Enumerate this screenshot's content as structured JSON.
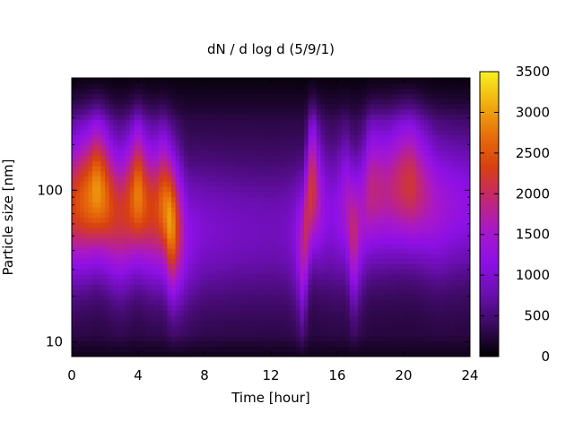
{
  "chart_data": {
    "type": "heatmap",
    "title": "dN / d log d (5/9/1)",
    "xlabel": "Time [hour]",
    "ylabel": "Particle size [nm]",
    "xlim": [
      0,
      24
    ],
    "ylim": [
      8,
      550
    ],
    "yscale": "log",
    "x_ticks": [
      0,
      4,
      8,
      12,
      16,
      20,
      24
    ],
    "x_tick_labels": [
      "0",
      "4",
      "8",
      "12",
      "16",
      "20",
      "24"
    ],
    "y_ticks": [
      10,
      100
    ],
    "y_tick_labels": [
      "10",
      "100"
    ],
    "colorbar": {
      "range": [
        0,
        3500
      ],
      "ticks": [
        0,
        500,
        1000,
        1500,
        2000,
        2500,
        3000,
        3500
      ],
      "tick_labels": [
        "0",
        "500",
        "1000",
        "1500",
        "2000",
        "2500",
        "3000",
        "3500"
      ],
      "colormap": [
        "#000000",
        "#3a0a5e",
        "#6a0fb0",
        "#8e10e6",
        "#a818c8",
        "#c22870",
        "#d84010",
        "#e8700a",
        "#f0b010",
        "#f8f020"
      ]
    },
    "time_profile": {
      "x": [
        0,
        0.5,
        1,
        1.5,
        2,
        2.5,
        3,
        3.5,
        4,
        4.5,
        5,
        5.5,
        6,
        6.5,
        7,
        8,
        9,
        10,
        11,
        12,
        13,
        13.5,
        14,
        14.5,
        15,
        15.5,
        16,
        16.5,
        17,
        17.5,
        18,
        19,
        20,
        20.5,
        21,
        21.5,
        22,
        23,
        24
      ],
      "peak_dNdlogd": [
        2300,
        2500,
        2700,
        3000,
        2700,
        2300,
        2200,
        2400,
        2900,
        2400,
        2300,
        2700,
        3100,
        2000,
        1200,
        1000,
        950,
        900,
        880,
        850,
        900,
        1100,
        1900,
        2300,
        1400,
        1100,
        1200,
        1500,
        2000,
        1500,
        1900,
        1800,
        2100,
        2200,
        1900,
        1700,
        1500,
        1300,
        1200
      ],
      "peak_size_nm": [
        80,
        85,
        90,
        100,
        90,
        75,
        70,
        80,
        95,
        80,
        75,
        80,
        60,
        55,
        50,
        55,
        55,
        55,
        55,
        55,
        55,
        50,
        40,
        110,
        80,
        70,
        70,
        80,
        50,
        70,
        100,
        100,
        110,
        110,
        100,
        90,
        80,
        80,
        80
      ]
    }
  }
}
